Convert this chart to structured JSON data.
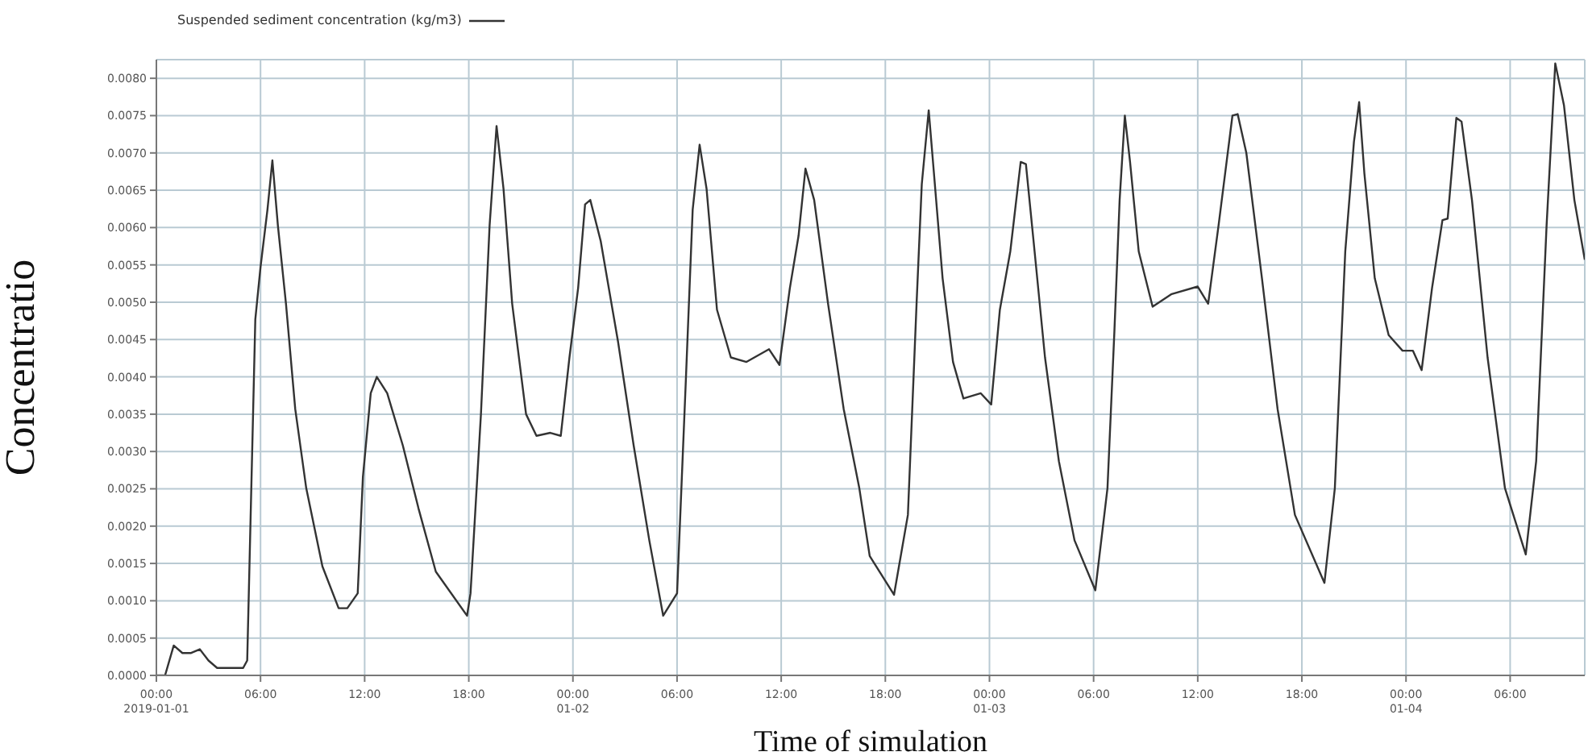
{
  "chart_data": {
    "type": "line",
    "xlabel": "Time of simulation",
    "ylabel": "Concentratio",
    "series": [
      {
        "name": "Suspended sediment concentration (kg/m3)",
        "color": "#333333",
        "x": [
          "2019-01-01T00:00",
          "2019-01-01T00:30",
          "2019-01-01T01:00",
          "2019-01-01T01:30",
          "2019-01-01T02:00",
          "2019-01-01T02:30",
          "2019-01-01T03:00",
          "2019-01-01T03:30",
          "2019-01-01T04:30",
          "2019-01-01T05:00",
          "2019-01-01T05:14",
          "2019-01-01T05:42",
          "2019-01-01T06:00",
          "2019-01-01T06:24",
          "2019-01-01T06:41",
          "2019-01-01T07:00",
          "2019-01-01T07:28",
          "2019-01-01T08:00",
          "2019-01-01T08:38",
          "2019-01-01T09:34",
          "2019-01-01T10:30",
          "2019-01-01T11:00",
          "2019-01-01T11:36",
          "2019-01-01T11:54",
          "2019-01-01T12:21",
          "2019-01-01T12:42",
          "2019-01-01T13:18",
          "2019-01-01T14:12",
          "2019-01-01T15:06",
          "2019-01-01T16:06",
          "2019-01-01T17:54",
          "2019-01-01T18:06",
          "2019-01-01T18:42",
          "2019-01-01T19:12",
          "2019-01-01T19:36",
          "2019-01-01T20:00",
          "2019-01-01T20:30",
          "2019-01-01T21:18",
          "2019-01-01T21:54",
          "2019-01-01T22:42",
          "2019-01-01T23:18",
          "2019-01-01T23:48",
          "2019-01-02T00:18",
          "2019-01-02T00:42",
          "2019-01-02T01:00",
          "2019-01-02T01:36",
          "2019-01-02T02:36",
          "2019-01-02T03:30",
          "2019-01-02T04:24",
          "2019-01-02T05:12",
          "2019-01-02T06:00",
          "2019-01-02T06:30",
          "2019-01-02T06:54",
          "2019-01-02T07:18",
          "2019-01-02T07:42",
          "2019-01-02T08:18",
          "2019-01-02T09:06",
          "2019-01-02T10:00",
          "2019-01-02T11:18",
          "2019-01-02T11:54",
          "2019-01-02T12:30",
          "2019-01-02T13:00",
          "2019-01-02T13:24",
          "2019-01-02T13:54",
          "2019-01-02T14:42",
          "2019-01-02T15:36",
          "2019-01-02T16:30",
          "2019-01-02T17:06",
          "2019-01-02T18:30",
          "2019-01-02T19:18",
          "2019-01-02T19:48",
          "2019-01-02T20:06",
          "2019-01-02T20:30",
          "2019-01-02T20:48",
          "2019-01-02T21:18",
          "2019-01-02T21:54",
          "2019-01-02T22:30",
          "2019-01-02T23:30",
          "2019-01-03T00:06",
          "2019-01-03T00:36",
          "2019-01-03T01:12",
          "2019-01-03T01:48",
          "2019-01-03T02:06",
          "2019-01-03T02:36",
          "2019-01-03T03:12",
          "2019-01-03T04:00",
          "2019-01-03T04:54",
          "2019-01-03T06:06",
          "2019-01-03T06:48",
          "2019-01-03T07:12",
          "2019-01-03T07:30",
          "2019-01-03T07:48",
          "2019-01-03T08:06",
          "2019-01-03T08:36",
          "2019-01-03T09:24",
          "2019-01-03T10:30",
          "2019-01-03T12:00",
          "2019-01-03T12:36",
          "2019-01-03T13:12",
          "2019-01-03T14:00",
          "2019-01-03T14:18",
          "2019-01-03T14:48",
          "2019-01-03T15:42",
          "2019-01-03T16:36",
          "2019-01-03T17:36",
          "2019-01-03T19:18",
          "2019-01-03T19:54",
          "2019-01-03T20:30",
          "2019-01-03T21:00",
          "2019-01-03T21:18",
          "2019-01-03T21:36",
          "2019-01-03T22:12",
          "2019-01-03T23:00",
          "2019-01-03T23:48",
          "2019-01-04T00:24",
          "2019-01-04T00:54",
          "2019-01-04T01:30",
          "2019-01-04T02:06",
          "2019-01-04T02:24",
          "2019-01-04T02:54",
          "2019-01-04T03:12",
          "2019-01-04T03:48",
          "2019-01-04T04:42",
          "2019-01-04T05:42",
          "2019-01-04T06:54",
          "2019-01-04T07:30",
          "2019-01-04T08:06",
          "2019-01-04T08:36",
          "2019-01-04T09:06",
          "2019-01-04T09:42",
          "2019-01-04T10:18"
        ],
        "values": [
          0,
          0,
          0.0004,
          0.0003,
          0.0003,
          0.00035,
          0.0002,
          0.0001,
          0.0001,
          0.0001,
          0.0002,
          0.00477,
          0.00547,
          0.00624,
          0.0069,
          0.00603,
          0.00498,
          0.00357,
          0.00251,
          0.00146,
          0.0009,
          0.0009,
          0.0011,
          0.00266,
          0.00378,
          0.004,
          0.00378,
          0.00308,
          0.00224,
          0.00139,
          0.0008,
          0.0011,
          0.0035,
          0.00603,
          0.00736,
          0.00652,
          0.00498,
          0.0035,
          0.00321,
          0.00325,
          0.00321,
          0.00426,
          0.00519,
          0.00631,
          0.00637,
          0.00582,
          0.00447,
          0.00308,
          0.00181,
          0.0008,
          0.0011,
          0.00392,
          0.00624,
          0.00711,
          0.00652,
          0.0049,
          0.00426,
          0.0042,
          0.00437,
          0.00416,
          0.00519,
          0.00589,
          0.00679,
          0.00637,
          0.00498,
          0.00357,
          0.00251,
          0.0016,
          0.00108,
          0.00215,
          0.00498,
          0.00658,
          0.00757,
          0.00673,
          0.00532,
          0.0042,
          0.00371,
          0.00378,
          0.00363,
          0.0049,
          0.00568,
          0.00688,
          0.00685,
          0.00568,
          0.00426,
          0.00287,
          0.00181,
          0.00114,
          0.00251,
          0.00462,
          0.00637,
          0.0075,
          0.00688,
          0.00568,
          0.00494,
          0.00511,
          0.00521,
          0.00498,
          0.00603,
          0.0075,
          0.00752,
          0.007,
          0.00532,
          0.00357,
          0.00215,
          0.00124,
          0.00251,
          0.00568,
          0.00715,
          0.00768,
          0.00673,
          0.00532,
          0.00456,
          0.00435,
          0.00435,
          0.00409,
          0.00519,
          0.0061,
          0.00612,
          0.00747,
          0.00742,
          0.00637,
          0.00426,
          0.00251,
          0.00162,
          0.00287,
          0.00603,
          0.0082,
          0.00764,
          0.00637,
          0.00557
        ]
      }
    ],
    "xlim": [
      "2019-01-01T00:00",
      "2019-01-04T10:18"
    ],
    "xticks": [
      {
        "value": "2019-01-01T00:00",
        "label": "00:00 2019-01-01"
      },
      {
        "value": "2019-01-01T06:00",
        "label": "06:00"
      },
      {
        "value": "2019-01-01T12:00",
        "label": "12:00"
      },
      {
        "value": "2019-01-01T18:00",
        "label": "18:00"
      },
      {
        "value": "2019-01-02T00:00",
        "label": "00:00 01-02"
      },
      {
        "value": "2019-01-02T06:00",
        "label": "06:00"
      },
      {
        "value": "2019-01-02T12:00",
        "label": "12:00"
      },
      {
        "value": "2019-01-02T18:00",
        "label": "18:00"
      },
      {
        "value": "2019-01-03T00:00",
        "label": "00:00 01-03"
      },
      {
        "value": "2019-01-03T06:00",
        "label": "06:00"
      },
      {
        "value": "2019-01-03T12:00",
        "label": "12:00"
      },
      {
        "value": "2019-01-03T18:00",
        "label": "18:00"
      },
      {
        "value": "2019-01-04T00:00",
        "label": "00:00 01-04"
      },
      {
        "value": "2019-01-04T06:00",
        "label": "06:00"
      }
    ],
    "ylim": [
      0,
      0.00825
    ],
    "yticks": [
      {
        "value": 0,
        "label": "0.0000"
      },
      {
        "value": 0.0005,
        "label": "0.0005"
      },
      {
        "value": 0.001,
        "label": "0.0010"
      },
      {
        "value": 0.0015,
        "label": "0.0015"
      },
      {
        "value": 0.002,
        "label": "0.0020"
      },
      {
        "value": 0.0025,
        "label": "0.0025"
      },
      {
        "value": 0.003,
        "label": "0.0030"
      },
      {
        "value": 0.0035,
        "label": "0.0035"
      },
      {
        "value": 0.004,
        "label": "0.0040"
      },
      {
        "value": 0.0045,
        "label": "0.0045"
      },
      {
        "value": 0.005,
        "label": "0.0050"
      },
      {
        "value": 0.0055,
        "label": "0.0055"
      },
      {
        "value": 0.006,
        "label": "0.0060"
      },
      {
        "value": 0.0065,
        "label": "0.0065"
      },
      {
        "value": 0.007,
        "label": "0.0070"
      },
      {
        "value": 0.0075,
        "label": "0.0075"
      },
      {
        "value": 0.008,
        "label": "0.0080"
      }
    ],
    "grid": true,
    "legend": "top",
    "marker": "none",
    "line_style": "solid"
  }
}
